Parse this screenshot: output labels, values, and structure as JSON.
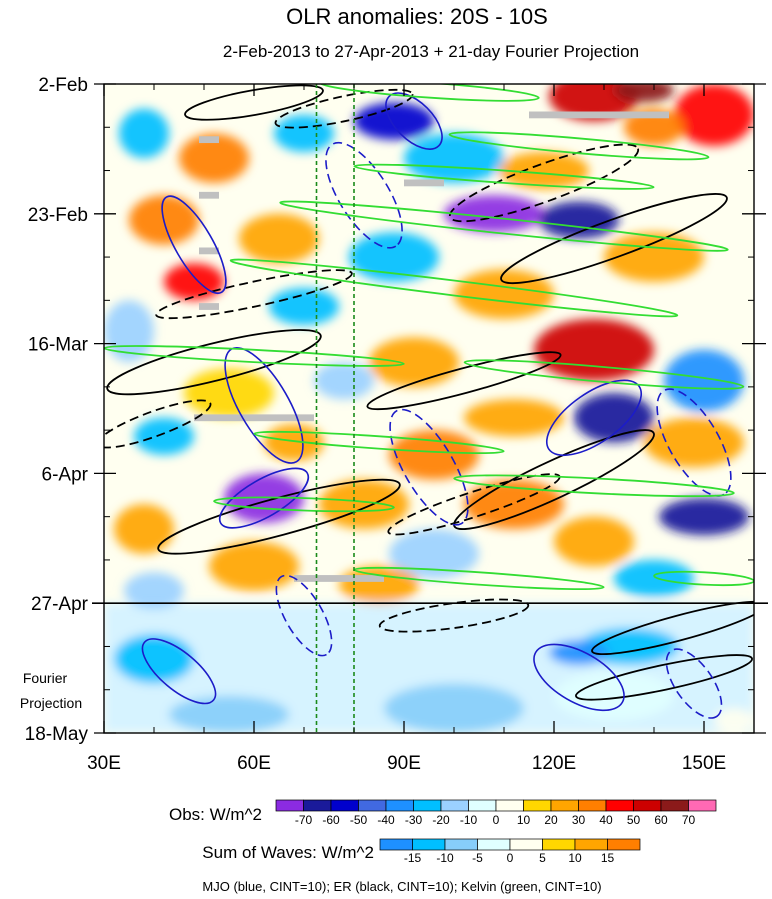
{
  "chart_data": {
    "type": "heatmap",
    "title": "OLR anomalies: 20S - 10S",
    "subtitle": "2-Feb-2013 to 27-Apr-2013 + 21-day Fourier Projection",
    "x_axis": {
      "range": [
        30,
        160
      ],
      "ticks": [
        {
          "value": 30,
          "label": "30E"
        },
        {
          "value": 60,
          "label": "60E"
        },
        {
          "value": 90,
          "label": "90E"
        },
        {
          "value": 120,
          "label": "120E"
        },
        {
          "value": 150,
          "label": "150E"
        }
      ]
    },
    "y_axis": {
      "range_days": [
        0,
        105
      ],
      "ticks": [
        {
          "day": 0,
          "label": "2-Feb"
        },
        {
          "day": 21,
          "label": "23-Feb"
        },
        {
          "day": 42,
          "label": "16-Mar"
        },
        {
          "day": 63,
          "label": "6-Apr"
        },
        {
          "day": 84,
          "label": "27-Apr"
        },
        {
          "day": 105,
          "label": "18-May"
        }
      ]
    },
    "projection_label": [
      "Fourier",
      "Projection"
    ],
    "projection_start_day": 84,
    "reference_lines_lon": [
      72.5,
      80
    ],
    "obs_colorbar": {
      "label": "Obs: W/m^2",
      "levels": [
        "-70",
        "-60",
        "-50",
        "-40",
        "-30",
        "-20",
        "-10",
        "0",
        "10",
        "20",
        "30",
        "40",
        "50",
        "60",
        "70"
      ],
      "colors": [
        "#8b2be2",
        "#1a1a9a",
        "#0000cd",
        "#4169e1",
        "#1e90ff",
        "#00bfff",
        "#9bd1ff",
        "#e0ffff",
        "#fffff0",
        "#ffd700",
        "#ffa500",
        "#ff7f00",
        "#ff0000",
        "#cd0000",
        "#8b1a1a",
        "#ff69b4"
      ]
    },
    "waves_colorbar": {
      "label": "Sum of Waves: W/m^2",
      "levels": [
        "-15",
        "-10",
        "-5",
        "0",
        "5",
        "10",
        "15"
      ],
      "colors": [
        "#1e90ff",
        "#00bfff",
        "#87cefa",
        "#e0ffff",
        "#fffff0",
        "#ffd700",
        "#ffa500",
        "#ff7f00"
      ]
    },
    "footnote": "MJO (blue, CINT=10); ER (black, CINT=10); Kelvin (green, CINT=10)",
    "field_blobs": [
      {
        "lon": 128,
        "day": 2,
        "rl": 9,
        "rd": 4,
        "level": 13
      },
      {
        "lon": 152,
        "day": 5,
        "rl": 8,
        "rd": 5,
        "level": 12
      },
      {
        "lon": 138,
        "day": 1,
        "rl": 6,
        "rd": 2,
        "level": 14
      },
      {
        "lon": 140,
        "day": 7,
        "rl": 6,
        "rd": 3,
        "level": 11
      },
      {
        "lon": 88,
        "day": 6,
        "rl": 8,
        "rd": 3,
        "level": 2
      },
      {
        "lon": 70,
        "day": 8,
        "rl": 6,
        "rd": 3,
        "level": 5
      },
      {
        "lon": 38,
        "day": 8,
        "rl": 5,
        "rd": 4,
        "level": 5
      },
      {
        "lon": 52,
        "day": 12,
        "rl": 7,
        "rd": 4,
        "level": 11
      },
      {
        "lon": 100,
        "day": 12,
        "rl": 10,
        "rd": 4,
        "level": 5
      },
      {
        "lon": 118,
        "day": 14,
        "rl": 9,
        "rd": 3,
        "level": 10
      },
      {
        "lon": 108,
        "day": 21,
        "rl": 10,
        "rd": 3,
        "level": 0
      },
      {
        "lon": 125,
        "day": 22,
        "rl": 8,
        "rd": 3,
        "level": 1
      },
      {
        "lon": 42,
        "day": 22,
        "rl": 7,
        "rd": 4,
        "level": 11
      },
      {
        "lon": 65,
        "day": 25,
        "rl": 8,
        "rd": 4,
        "level": 10
      },
      {
        "lon": 88,
        "day": 28,
        "rl": 9,
        "rd": 4,
        "level": 5
      },
      {
        "lon": 140,
        "day": 28,
        "rl": 10,
        "rd": 4,
        "level": 10
      },
      {
        "lon": 48,
        "day": 32,
        "rl": 6,
        "rd": 3,
        "level": 12
      },
      {
        "lon": 110,
        "day": 34,
        "rl": 10,
        "rd": 4,
        "level": 10
      },
      {
        "lon": 70,
        "day": 36,
        "rl": 7,
        "rd": 3,
        "level": 5
      },
      {
        "lon": 35,
        "day": 40,
        "rl": 5,
        "rd": 5,
        "level": 6
      },
      {
        "lon": 128,
        "day": 43,
        "rl": 12,
        "rd": 5,
        "level": 13
      },
      {
        "lon": 92,
        "day": 45,
        "rl": 9,
        "rd": 4,
        "level": 10
      },
      {
        "lon": 78,
        "day": 48,
        "rl": 6,
        "rd": 3,
        "level": 6
      },
      {
        "lon": 150,
        "day": 48,
        "rl": 8,
        "rd": 5,
        "level": 4
      },
      {
        "lon": 55,
        "day": 50,
        "rl": 9,
        "rd": 4,
        "level": 9
      },
      {
        "lon": 112,
        "day": 54,
        "rl": 10,
        "rd": 3,
        "level": 10
      },
      {
        "lon": 132,
        "day": 54,
        "rl": 8,
        "rd": 4,
        "level": 1
      },
      {
        "lon": 42,
        "day": 57,
        "rl": 6,
        "rd": 3,
        "level": 5
      },
      {
        "lon": 68,
        "day": 58,
        "rl": 6,
        "rd": 3,
        "level": 10
      },
      {
        "lon": 96,
        "day": 60,
        "rl": 9,
        "rd": 4,
        "level": 11
      },
      {
        "lon": 148,
        "day": 58,
        "rl": 10,
        "rd": 4,
        "level": 10
      },
      {
        "lon": 62,
        "day": 67,
        "rl": 8,
        "rd": 4,
        "level": 0
      },
      {
        "lon": 82,
        "day": 68,
        "rl": 9,
        "rd": 4,
        "level": 10
      },
      {
        "lon": 112,
        "day": 68,
        "rl": 10,
        "rd": 4,
        "level": 11
      },
      {
        "lon": 150,
        "day": 70,
        "rl": 9,
        "rd": 3,
        "level": 1
      },
      {
        "lon": 38,
        "day": 72,
        "rl": 6,
        "rd": 4,
        "level": 10
      },
      {
        "lon": 128,
        "day": 74,
        "rl": 8,
        "rd": 4,
        "level": 10
      },
      {
        "lon": 96,
        "day": 76,
        "rl": 9,
        "rd": 4,
        "level": 6
      },
      {
        "lon": 60,
        "day": 78,
        "rl": 9,
        "rd": 4,
        "level": 10
      },
      {
        "lon": 140,
        "day": 80,
        "rl": 8,
        "rd": 3,
        "level": 5
      },
      {
        "lon": 85,
        "day": 81,
        "rl": 8,
        "rd": 3,
        "level": 10
      },
      {
        "lon": 40,
        "day": 82,
        "rl": 6,
        "rd": 3,
        "level": 6
      },
      {
        "lon": 135,
        "day": 91,
        "rl": 10,
        "rd": 3,
        "level": 2
      },
      {
        "lon": 125,
        "day": 92,
        "rl": 6,
        "rd": 2,
        "level": 1
      },
      {
        "lon": 132,
        "day": 99,
        "rl": 12,
        "rd": 4,
        "level": 5
      },
      {
        "lon": 100,
        "day": 101,
        "rl": 14,
        "rd": 4,
        "level": 4
      },
      {
        "lon": 55,
        "day": 102,
        "rl": 12,
        "rd": 3,
        "level": 4
      },
      {
        "lon": 40,
        "day": 93,
        "rl": 8,
        "rd": 4,
        "level": 2
      },
      {
        "lon": 156,
        "day": 103,
        "rl": 4,
        "rd": 2,
        "level": 6
      }
    ],
    "missing_segments": [
      {
        "lon0": 115,
        "lon1": 143,
        "day": 5
      },
      {
        "lon0": 49,
        "lon1": 53,
        "day": 9
      },
      {
        "lon0": 49,
        "lon1": 53,
        "day": 18
      },
      {
        "lon0": 49,
        "lon1": 53,
        "day": 27
      },
      {
        "lon0": 49,
        "lon1": 53,
        "day": 36
      },
      {
        "lon0": 48,
        "lon1": 72,
        "day": 54
      },
      {
        "lon0": 68,
        "lon1": 86,
        "day": 80
      },
      {
        "lon0": 90,
        "lon1": 98,
        "day": 16
      }
    ],
    "mjo_contours": [
      {
        "lon": 48,
        "day": 26,
        "rl": 11,
        "rd": 3,
        "angle": 60,
        "dash": false
      },
      {
        "lon": 82,
        "day": 18,
        "rl": 12,
        "rd": 4,
        "angle": 58,
        "dash": true
      },
      {
        "lon": 92,
        "day": 6,
        "rl": 7,
        "rd": 3,
        "angle": 45,
        "dash": false
      },
      {
        "lon": 62,
        "day": 52,
        "rl": 13,
        "rd": 4,
        "angle": 60,
        "dash": false
      },
      {
        "lon": 95,
        "day": 62,
        "rl": 13,
        "rd": 4,
        "angle": 60,
        "dash": true
      },
      {
        "lon": 62,
        "day": 67,
        "rl": 10,
        "rd": 3,
        "angle": -30,
        "dash": false
      },
      {
        "lon": 128,
        "day": 54,
        "rl": 11,
        "rd": 4,
        "angle": -35,
        "dash": false
      },
      {
        "lon": 148,
        "day": 58,
        "rl": 12,
        "rd": 4,
        "angle": 60,
        "dash": true
      },
      {
        "lon": 45,
        "day": 95,
        "rl": 9,
        "rd": 3,
        "angle": 40,
        "dash": false
      },
      {
        "lon": 125,
        "day": 96,
        "rl": 10,
        "rd": 4,
        "angle": 30,
        "dash": false
      },
      {
        "lon": 148,
        "day": 97,
        "rl": 8,
        "rd": 3,
        "angle": 55,
        "dash": true
      },
      {
        "lon": 70,
        "day": 86,
        "rl": 9,
        "rd": 3,
        "angle": 60,
        "dash": true
      }
    ],
    "er_contours": [
      {
        "lon": 60,
        "day": 3,
        "rl": 14,
        "rd": 2,
        "angle": -10,
        "dash": false
      },
      {
        "lon": 78,
        "day": 4,
        "rl": 14,
        "rd": 2,
        "angle": -12,
        "dash": true
      },
      {
        "lon": 118,
        "day": 16,
        "rl": 20,
        "rd": 3,
        "angle": -20,
        "dash": true
      },
      {
        "lon": 132,
        "day": 25,
        "rl": 24,
        "rd": 3,
        "angle": -20,
        "dash": false
      },
      {
        "lon": 60,
        "day": 34,
        "rl": 20,
        "rd": 2,
        "angle": -12,
        "dash": true
      },
      {
        "lon": 52,
        "day": 45,
        "rl": 22,
        "rd": 3,
        "angle": -14,
        "dash": false
      },
      {
        "lon": 102,
        "day": 48,
        "rl": 20,
        "rd": 2,
        "angle": -15,
        "dash": false
      },
      {
        "lon": 65,
        "day": 70,
        "rl": 25,
        "rd": 3,
        "angle": -15,
        "dash": false
      },
      {
        "lon": 120,
        "day": 64,
        "rl": 22,
        "rd": 3,
        "angle": -25,
        "dash": false
      },
      {
        "lon": 104,
        "day": 68,
        "rl": 18,
        "rd": 2,
        "angle": -18,
        "dash": true
      },
      {
        "lon": 145,
        "day": 88,
        "rl": 18,
        "rd": 2,
        "angle": -15,
        "dash": false
      },
      {
        "lon": 100,
        "day": 86,
        "rl": 15,
        "rd": 2,
        "angle": -8,
        "dash": true
      },
      {
        "lon": 142,
        "day": 96,
        "rl": 18,
        "rd": 2,
        "angle": -12,
        "dash": false
      },
      {
        "lon": 40,
        "day": 55,
        "rl": 12,
        "rd": 2,
        "angle": -20,
        "dash": true
      }
    ],
    "kelvin_contours": [
      {
        "lon": 95,
        "day": 1,
        "rl": 22,
        "rd": 1.2,
        "angle": 4,
        "dash": false
      },
      {
        "lon": 125,
        "day": 10,
        "rl": 26,
        "rd": 1.2,
        "angle": 5,
        "dash": false
      },
      {
        "lon": 110,
        "day": 15,
        "rl": 30,
        "rd": 1.0,
        "angle": 4,
        "dash": false
      },
      {
        "lon": 110,
        "day": 23,
        "rl": 45,
        "rd": 1.2,
        "angle": 6,
        "dash": false
      },
      {
        "lon": 100,
        "day": 33,
        "rl": 45,
        "rd": 1.2,
        "angle": 7,
        "dash": false
      },
      {
        "lon": 60,
        "day": 44,
        "rl": 30,
        "rd": 1.0,
        "angle": 3,
        "dash": false
      },
      {
        "lon": 130,
        "day": 47,
        "rl": 28,
        "rd": 1.2,
        "angle": 5,
        "dash": false
      },
      {
        "lon": 85,
        "day": 58,
        "rl": 25,
        "rd": 1.0,
        "angle": 4,
        "dash": false
      },
      {
        "lon": 128,
        "day": 65,
        "rl": 28,
        "rd": 1.2,
        "angle": 3,
        "dash": false
      },
      {
        "lon": 70,
        "day": 68,
        "rl": 18,
        "rd": 1.0,
        "angle": 2,
        "dash": false
      },
      {
        "lon": 105,
        "day": 80,
        "rl": 25,
        "rd": 1.0,
        "angle": 4,
        "dash": false
      },
      {
        "lon": 150,
        "day": 80,
        "rl": 10,
        "rd": 1.0,
        "angle": 3,
        "dash": false
      }
    ]
  }
}
